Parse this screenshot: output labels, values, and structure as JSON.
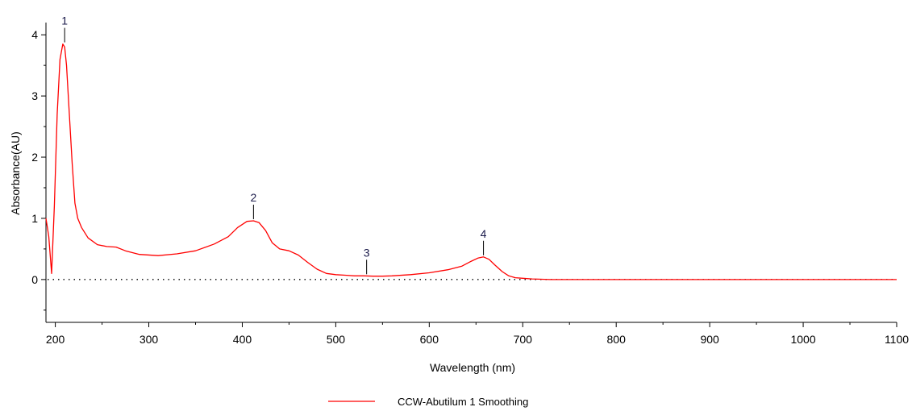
{
  "chart_data": {
    "type": "line",
    "title": "",
    "xlabel": "Wavelength (nm)",
    "ylabel": "Absorbance(AU)",
    "xlim": [
      190,
      1100
    ],
    "ylim": [
      -0.7,
      4.2
    ],
    "x_ticks": [
      200,
      300,
      400,
      500,
      600,
      700,
      800,
      900,
      1000,
      1100
    ],
    "x_tick_labels": [
      "200",
      "300",
      "400",
      "500",
      "600",
      "700",
      "800",
      "900",
      "1000",
      "1100"
    ],
    "y_ticks": [
      0,
      1,
      2,
      3,
      4
    ],
    "y_tick_labels": [
      "0",
      "1",
      "2",
      "3",
      "4"
    ],
    "baseline_y": 0,
    "grid": false,
    "legend_position": "bottom-center",
    "series": [
      {
        "name": "CCW-Abutilum 1 Smoothing",
        "color": "#ff0000",
        "x": [
          190,
          193,
          196,
          199,
          202,
          205,
          208,
          210,
          212,
          215,
          218,
          221,
          224,
          228,
          235,
          245,
          255,
          265,
          275,
          290,
          310,
          330,
          350,
          370,
          385,
          395,
          405,
          412,
          418,
          425,
          432,
          440,
          450,
          460,
          470,
          480,
          490,
          500,
          510,
          520,
          530,
          540,
          550,
          560,
          580,
          600,
          620,
          635,
          645,
          652,
          658,
          664,
          670,
          678,
          685,
          692,
          700,
          710,
          730,
          760,
          800,
          900,
          1000,
          1100
        ],
        "y": [
          1.0,
          0.7,
          0.1,
          1.2,
          2.7,
          3.6,
          3.85,
          3.8,
          3.5,
          2.7,
          1.9,
          1.25,
          1.0,
          0.85,
          0.68,
          0.57,
          0.54,
          0.53,
          0.47,
          0.41,
          0.39,
          0.42,
          0.47,
          0.58,
          0.7,
          0.85,
          0.95,
          0.96,
          0.93,
          0.8,
          0.6,
          0.5,
          0.47,
          0.4,
          0.28,
          0.17,
          0.1,
          0.08,
          0.07,
          0.06,
          0.06,
          0.055,
          0.055,
          0.06,
          0.08,
          0.11,
          0.16,
          0.22,
          0.3,
          0.35,
          0.37,
          0.33,
          0.24,
          0.13,
          0.06,
          0.03,
          0.02,
          0.01,
          0.0,
          0.0,
          0.0,
          0.0,
          0.0,
          0.0
        ]
      }
    ],
    "peaks": [
      {
        "label": "1",
        "x": 210,
        "y": 3.85
      },
      {
        "label": "2",
        "x": 412,
        "y": 0.96
      },
      {
        "label": "3",
        "x": 533,
        "y": 0.06
      },
      {
        "label": "4",
        "x": 658,
        "y": 0.37
      }
    ]
  }
}
